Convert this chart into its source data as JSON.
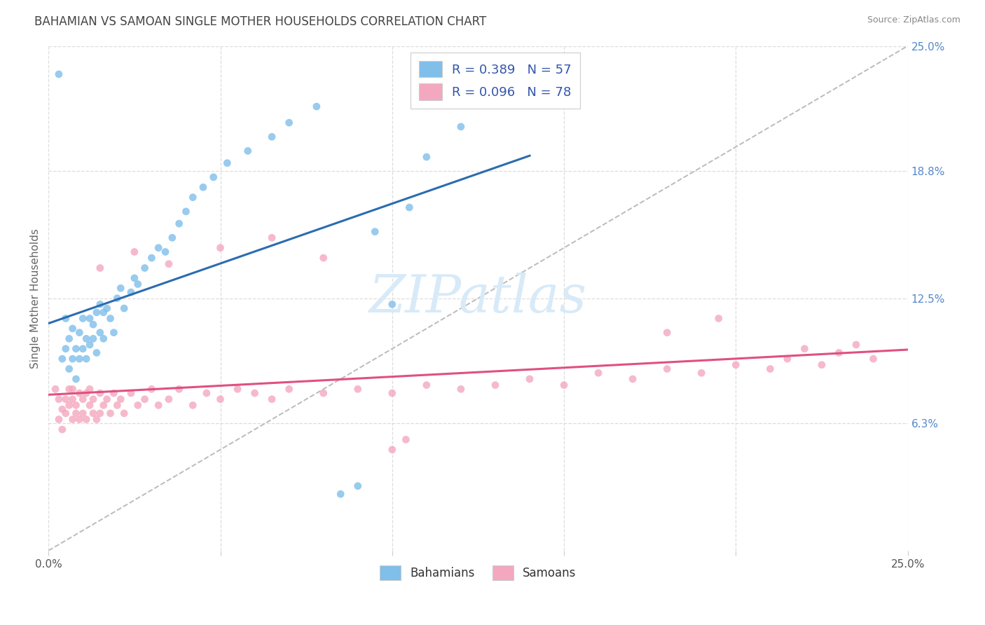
{
  "title": "BAHAMIAN VS SAMOAN SINGLE MOTHER HOUSEHOLDS CORRELATION CHART",
  "source": "Source: ZipAtlas.com",
  "ylabel": "Single Mother Households",
  "ytick_values": [
    0.063,
    0.125,
    0.188,
    0.25
  ],
  "ytick_labels": [
    "6.3%",
    "12.5%",
    "18.8%",
    "25.0%"
  ],
  "xlim": [
    0.0,
    0.25
  ],
  "ylim": [
    0.0,
    0.25
  ],
  "legend_entry1": "R = 0.389   N = 57",
  "legend_entry2": "R = 0.096   N = 78",
  "legend_label1": "Bahamians",
  "legend_label2": "Samoans",
  "blue_color": "#7fbfea",
  "pink_color": "#f4a8c0",
  "blue_line_color": "#2b6cb0",
  "pink_line_color": "#e05080",
  "dashed_line_color": "#bbbbbb",
  "title_color": "#444444",
  "right_tick_color": "#5588cc",
  "watermark_color": "#d8eaf8",
  "legend_text_color": "#3355aa",
  "grid_color": "#dddddd",
  "bah_x": [
    0.003,
    0.004,
    0.005,
    0.005,
    0.006,
    0.006,
    0.007,
    0.007,
    0.008,
    0.008,
    0.009,
    0.009,
    0.01,
    0.01,
    0.011,
    0.011,
    0.012,
    0.012,
    0.013,
    0.013,
    0.014,
    0.014,
    0.015,
    0.015,
    0.016,
    0.016,
    0.017,
    0.018,
    0.019,
    0.02,
    0.021,
    0.022,
    0.024,
    0.025,
    0.026,
    0.028,
    0.03,
    0.032,
    0.034,
    0.036,
    0.038,
    0.04,
    0.042,
    0.045,
    0.048,
    0.052,
    0.058,
    0.065,
    0.07,
    0.078,
    0.085,
    0.09,
    0.095,
    0.1,
    0.105,
    0.11,
    0.12
  ],
  "bah_y": [
    0.236,
    0.095,
    0.1,
    0.115,
    0.105,
    0.09,
    0.095,
    0.11,
    0.1,
    0.085,
    0.095,
    0.108,
    0.1,
    0.115,
    0.095,
    0.105,
    0.115,
    0.102,
    0.105,
    0.112,
    0.118,
    0.098,
    0.122,
    0.108,
    0.118,
    0.105,
    0.12,
    0.115,
    0.108,
    0.125,
    0.13,
    0.12,
    0.128,
    0.135,
    0.132,
    0.14,
    0.145,
    0.15,
    0.148,
    0.155,
    0.162,
    0.168,
    0.175,
    0.18,
    0.185,
    0.192,
    0.198,
    0.205,
    0.212,
    0.22,
    0.028,
    0.032,
    0.158,
    0.122,
    0.17,
    0.195,
    0.21
  ],
  "sam_x": [
    0.002,
    0.003,
    0.003,
    0.004,
    0.004,
    0.005,
    0.005,
    0.006,
    0.006,
    0.007,
    0.007,
    0.007,
    0.008,
    0.008,
    0.009,
    0.009,
    0.01,
    0.01,
    0.011,
    0.011,
    0.012,
    0.012,
    0.013,
    0.013,
    0.014,
    0.015,
    0.015,
    0.016,
    0.017,
    0.018,
    0.019,
    0.02,
    0.021,
    0.022,
    0.024,
    0.026,
    0.028,
    0.03,
    0.032,
    0.035,
    0.038,
    0.042,
    0.046,
    0.05,
    0.055,
    0.06,
    0.065,
    0.07,
    0.08,
    0.09,
    0.1,
    0.11,
    0.12,
    0.13,
    0.14,
    0.15,
    0.16,
    0.17,
    0.18,
    0.19,
    0.2,
    0.21,
    0.215,
    0.22,
    0.225,
    0.23,
    0.235,
    0.24,
    0.1,
    0.104,
    0.05,
    0.065,
    0.08,
    0.18,
    0.195,
    0.015,
    0.025,
    0.035
  ],
  "sam_y": [
    0.08,
    0.075,
    0.065,
    0.07,
    0.06,
    0.075,
    0.068,
    0.072,
    0.08,
    0.075,
    0.065,
    0.08,
    0.072,
    0.068,
    0.078,
    0.065,
    0.075,
    0.068,
    0.078,
    0.065,
    0.072,
    0.08,
    0.068,
    0.075,
    0.065,
    0.078,
    0.068,
    0.072,
    0.075,
    0.068,
    0.078,
    0.072,
    0.075,
    0.068,
    0.078,
    0.072,
    0.075,
    0.08,
    0.072,
    0.075,
    0.08,
    0.072,
    0.078,
    0.075,
    0.08,
    0.078,
    0.075,
    0.08,
    0.078,
    0.08,
    0.078,
    0.082,
    0.08,
    0.082,
    0.085,
    0.082,
    0.088,
    0.085,
    0.09,
    0.088,
    0.092,
    0.09,
    0.095,
    0.1,
    0.092,
    0.098,
    0.102,
    0.095,
    0.05,
    0.055,
    0.15,
    0.155,
    0.145,
    0.108,
    0.115,
    0.14,
    0.148,
    0.142
  ]
}
